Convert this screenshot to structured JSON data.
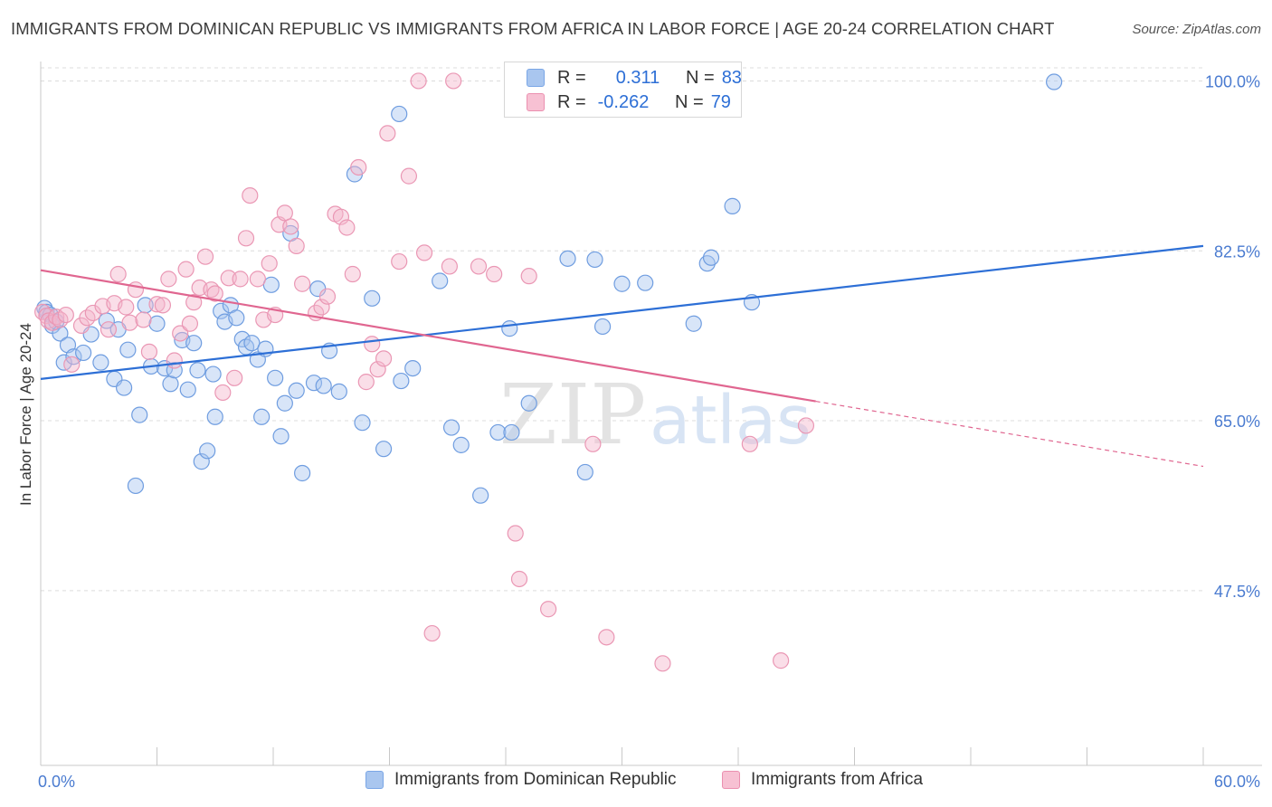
{
  "page": {
    "title": "IMMIGRANTS FROM DOMINICAN REPUBLIC VS IMMIGRANTS FROM AFRICA IN LABOR FORCE | AGE 20-24 CORRELATION CHART",
    "source": "Source: ZipAtlas.com"
  },
  "colors": {
    "blue": "#2d6fd6",
    "blue_fill": "#a9c6ef",
    "pink": "#e06690",
    "pink_fill": "#f5b5cb",
    "grid": "#dcdcdc",
    "axis": "#c8c8c8"
  },
  "legend": {
    "rows": [
      {
        "r_label": "R =",
        "r_value": "0.311",
        "n_label": "N =",
        "n_value": "83"
      },
      {
        "r_label": "R =",
        "r_value": "-0.262",
        "n_label": "N =",
        "n_value": "79"
      }
    ]
  },
  "watermark": {
    "zip": "ZIP",
    "atlas": "atlas"
  },
  "chart_data": {
    "type": "scatter",
    "title": "IMMIGRANTS FROM DOMINICAN REPUBLIC VS IMMIGRANTS FROM AFRICA IN LABOR FORCE | AGE 20-24 CORRELATION CHART",
    "xlabel": "",
    "ylabel": "In Labor Force | Age 20-24",
    "xlim": [
      0,
      60
    ],
    "ylim": [
      29.5,
      102
    ],
    "x_tick_labels": [
      "0.0%",
      "60.0%"
    ],
    "y_ticks": [
      47.5,
      65.0,
      82.5,
      100.0
    ],
    "y_tick_labels": [
      "47.5%",
      "65.0%",
      "82.5%",
      "100.0%"
    ],
    "legend_position": "bottom",
    "series": [
      {
        "name": "Immigrants from Dominican Republic",
        "color": "blue",
        "trend": {
          "x0": 0,
          "y0": 69.3,
          "x1": 60,
          "y1": 83.0
        },
        "points": [
          [
            0.2,
            76.6
          ],
          [
            0.3,
            76.2
          ],
          [
            0.5,
            75.9
          ],
          [
            0.6,
            74.8
          ],
          [
            0.8,
            75.2
          ],
          [
            1.0,
            74.0
          ],
          [
            1.2,
            71.0
          ],
          [
            1.4,
            72.8
          ],
          [
            1.7,
            71.6
          ],
          [
            2.2,
            72.0
          ],
          [
            2.6,
            73.9
          ],
          [
            3.1,
            71.0
          ],
          [
            3.4,
            75.3
          ],
          [
            3.8,
            69.3
          ],
          [
            4.0,
            74.4
          ],
          [
            4.3,
            68.4
          ],
          [
            4.5,
            72.3
          ],
          [
            4.9,
            58.3
          ],
          [
            5.1,
            65.6
          ],
          [
            5.4,
            76.9
          ],
          [
            5.7,
            70.6
          ],
          [
            6.0,
            75.0
          ],
          [
            6.4,
            70.4
          ],
          [
            6.7,
            68.8
          ],
          [
            6.9,
            70.2
          ],
          [
            7.3,
            73.3
          ],
          [
            7.6,
            68.2
          ],
          [
            7.9,
            73.0
          ],
          [
            8.1,
            70.2
          ],
          [
            8.3,
            60.8
          ],
          [
            8.6,
            61.9
          ],
          [
            8.9,
            69.8
          ],
          [
            9.0,
            65.4
          ],
          [
            9.3,
            76.3
          ],
          [
            9.5,
            75.2
          ],
          [
            9.8,
            76.9
          ],
          [
            10.1,
            75.6
          ],
          [
            10.4,
            73.4
          ],
          [
            10.6,
            72.6
          ],
          [
            10.9,
            73.0
          ],
          [
            11.2,
            71.3
          ],
          [
            11.4,
            65.4
          ],
          [
            11.6,
            72.4
          ],
          [
            11.9,
            79.0
          ],
          [
            12.1,
            69.4
          ],
          [
            12.4,
            63.4
          ],
          [
            12.6,
            66.8
          ],
          [
            12.9,
            84.3
          ],
          [
            13.2,
            68.1
          ],
          [
            13.5,
            59.6
          ],
          [
            14.1,
            68.9
          ],
          [
            14.3,
            78.6
          ],
          [
            14.6,
            68.6
          ],
          [
            14.9,
            72.2
          ],
          [
            15.4,
            68.0
          ],
          [
            16.2,
            90.4
          ],
          [
            16.6,
            64.8
          ],
          [
            17.1,
            77.6
          ],
          [
            17.7,
            62.1
          ],
          [
            18.6,
            69.1
          ],
          [
            18.5,
            96.6
          ],
          [
            19.2,
            70.4
          ],
          [
            20.6,
            79.4
          ],
          [
            21.2,
            64.3
          ],
          [
            21.7,
            62.5
          ],
          [
            22.7,
            57.3
          ],
          [
            23.6,
            63.8
          ],
          [
            24.2,
            74.5
          ],
          [
            24.3,
            63.8
          ],
          [
            25.2,
            66.8
          ],
          [
            27.2,
            81.7
          ],
          [
            28.1,
            59.7
          ],
          [
            28.6,
            81.6
          ],
          [
            29.0,
            74.7
          ],
          [
            30.0,
            79.1
          ],
          [
            31.2,
            79.2
          ],
          [
            33.7,
            75.0
          ],
          [
            34.4,
            81.2
          ],
          [
            34.6,
            81.8
          ],
          [
            35.7,
            87.1
          ],
          [
            36.7,
            77.2
          ],
          [
            52.3,
            99.9
          ]
        ]
      },
      {
        "name": "Immigrants from Africa",
        "color": "pink",
        "trend": {
          "x0": 0,
          "y0": 80.5,
          "x1": 40,
          "y1": 67.0
        },
        "trend_dashed_to": {
          "x": 60,
          "y": 60.3
        },
        "points": [
          [
            0.1,
            76.2
          ],
          [
            0.3,
            75.8
          ],
          [
            0.4,
            75.3
          ],
          [
            0.6,
            75.1
          ],
          [
            0.8,
            75.7
          ],
          [
            1.0,
            75.4
          ],
          [
            1.3,
            75.9
          ],
          [
            1.6,
            70.8
          ],
          [
            2.1,
            74.8
          ],
          [
            2.4,
            75.6
          ],
          [
            2.7,
            76.1
          ],
          [
            3.2,
            76.8
          ],
          [
            3.5,
            74.4
          ],
          [
            3.8,
            77.1
          ],
          [
            4.0,
            80.1
          ],
          [
            4.4,
            76.7
          ],
          [
            4.6,
            75.1
          ],
          [
            4.9,
            78.5
          ],
          [
            5.3,
            75.4
          ],
          [
            5.6,
            72.1
          ],
          [
            6.0,
            77.0
          ],
          [
            6.3,
            76.9
          ],
          [
            6.6,
            79.6
          ],
          [
            6.9,
            71.2
          ],
          [
            7.2,
            74.0
          ],
          [
            7.5,
            80.6
          ],
          [
            7.7,
            75.0
          ],
          [
            7.9,
            77.2
          ],
          [
            8.2,
            78.7
          ],
          [
            8.5,
            81.9
          ],
          [
            8.8,
            78.5
          ],
          [
            9.0,
            78.1
          ],
          [
            9.4,
            67.9
          ],
          [
            9.7,
            79.7
          ],
          [
            10.0,
            69.4
          ],
          [
            10.3,
            79.6
          ],
          [
            10.6,
            83.8
          ],
          [
            10.8,
            88.2
          ],
          [
            11.2,
            79.6
          ],
          [
            11.5,
            75.4
          ],
          [
            11.8,
            81.2
          ],
          [
            12.1,
            75.9
          ],
          [
            12.3,
            85.2
          ],
          [
            12.6,
            86.4
          ],
          [
            12.9,
            85.0
          ],
          [
            13.2,
            83.0
          ],
          [
            13.5,
            79.1
          ],
          [
            14.2,
            76.1
          ],
          [
            14.5,
            76.7
          ],
          [
            14.8,
            77.8
          ],
          [
            15.2,
            86.3
          ],
          [
            15.5,
            86.0
          ],
          [
            15.8,
            84.9
          ],
          [
            16.1,
            80.1
          ],
          [
            16.4,
            91.1
          ],
          [
            16.8,
            69.0
          ],
          [
            17.1,
            72.9
          ],
          [
            17.4,
            70.3
          ],
          [
            17.7,
            71.4
          ],
          [
            17.9,
            94.6
          ],
          [
            18.5,
            81.4
          ],
          [
            19.0,
            90.2
          ],
          [
            19.5,
            100.0
          ],
          [
            19.8,
            82.3
          ],
          [
            20.2,
            43.1
          ],
          [
            21.1,
            80.9
          ],
          [
            21.3,
            100.0
          ],
          [
            22.6,
            80.9
          ],
          [
            23.4,
            80.1
          ],
          [
            24.5,
            53.4
          ],
          [
            24.7,
            48.7
          ],
          [
            25.2,
            79.9
          ],
          [
            26.2,
            45.6
          ],
          [
            28.5,
            62.6
          ],
          [
            29.2,
            42.7
          ],
          [
            32.1,
            40.0
          ],
          [
            36.6,
            62.6
          ],
          [
            38.2,
            40.3
          ],
          [
            39.5,
            64.5
          ]
        ]
      }
    ]
  }
}
